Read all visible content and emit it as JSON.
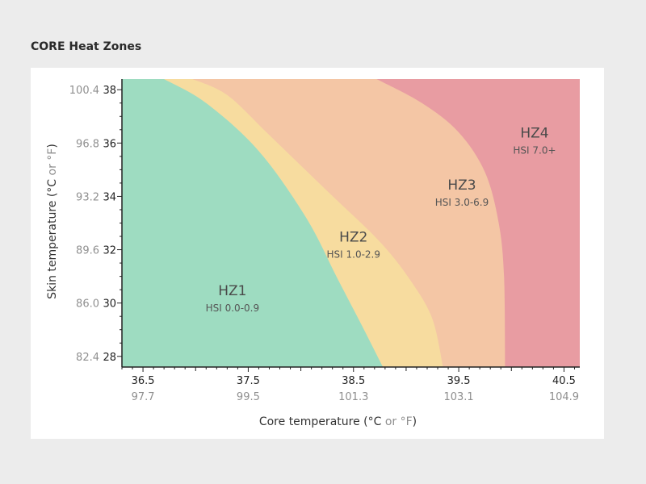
{
  "title": "CORE Heat Zones",
  "colors": {
    "hz1": "#9edcc1",
    "hz2": "#f7dc9f",
    "hz3": "#f4c6a5",
    "hz4": "#e89ca2",
    "secondary_text": "#8f8f8f",
    "primary_text": "#222222"
  },
  "chart_data": {
    "type": "area",
    "title": "CORE Heat Zones",
    "xlabel": {
      "prefix": "Core temperature (°C ",
      "alt": "or °F",
      "suffix": ")"
    },
    "ylabel": {
      "prefix": "Skin temperature (°C ",
      "alt": "or °F",
      "suffix": ")"
    },
    "xlim": [
      36.3,
      40.65
    ],
    "ylim": [
      27.6,
      38.4
    ],
    "x_ticks": [
      {
        "c": 36.5,
        "label_c": "36.5",
        "label_f": "97.7"
      },
      {
        "c": 37.5,
        "label_c": "37.5",
        "label_f": "99.5"
      },
      {
        "c": 38.5,
        "label_c": "38.5",
        "label_f": "101.3"
      },
      {
        "c": 39.5,
        "label_c": "39.5",
        "label_f": "103.1"
      },
      {
        "c": 40.5,
        "label_c": "40.5",
        "label_f": "104.9"
      }
    ],
    "y_ticks": [
      {
        "c": 28,
        "label_c": "28",
        "label_f": "82.4"
      },
      {
        "c": 30,
        "label_c": "30",
        "label_f": "86.0"
      },
      {
        "c": 32,
        "label_c": "32",
        "label_f": "89.6"
      },
      {
        "c": 34,
        "label_c": "34",
        "label_f": "93.2"
      },
      {
        "c": 36,
        "label_c": "36",
        "label_f": "96.8"
      },
      {
        "c": 38,
        "label_c": "38",
        "label_f": "100.4"
      }
    ],
    "zones": [
      {
        "name": "HZ1",
        "hsi": "HSI 0.0-0.9",
        "label_at": {
          "x": 37.35,
          "y": 30.3
        },
        "upper_boundary": [
          [
            36.7,
            38.4
          ],
          [
            37.1,
            37.5
          ],
          [
            37.6,
            35.7
          ],
          [
            38.05,
            33.2
          ],
          [
            38.35,
            30.9
          ],
          [
            38.6,
            29.0
          ],
          [
            38.78,
            27.6
          ]
        ]
      },
      {
        "name": "HZ2",
        "hsi": "HSI 1.0-2.9",
        "label_at": {
          "x": 38.5,
          "y": 32.3
        },
        "upper_boundary": [
          [
            36.97,
            38.4
          ],
          [
            37.3,
            37.8
          ],
          [
            37.7,
            36.3
          ],
          [
            38.25,
            34.2
          ],
          [
            38.75,
            32.3
          ],
          [
            39.05,
            30.8
          ],
          [
            39.25,
            29.4
          ],
          [
            39.35,
            27.6
          ]
        ]
      },
      {
        "name": "HZ3",
        "hsi": "HSI 3.0-6.9",
        "label_at": {
          "x": 39.53,
          "y": 34.25
        },
        "upper_boundary": [
          [
            38.72,
            38.4
          ],
          [
            39.15,
            37.5
          ],
          [
            39.5,
            36.4
          ],
          [
            39.75,
            34.9
          ],
          [
            39.88,
            33.0
          ],
          [
            39.93,
            31.0
          ],
          [
            39.94,
            27.6
          ]
        ]
      },
      {
        "name": "HZ4",
        "hsi": "HSI 7.0+",
        "label_at": {
          "x": 40.22,
          "y": 36.2
        },
        "upper_boundary": null
      }
    ]
  }
}
